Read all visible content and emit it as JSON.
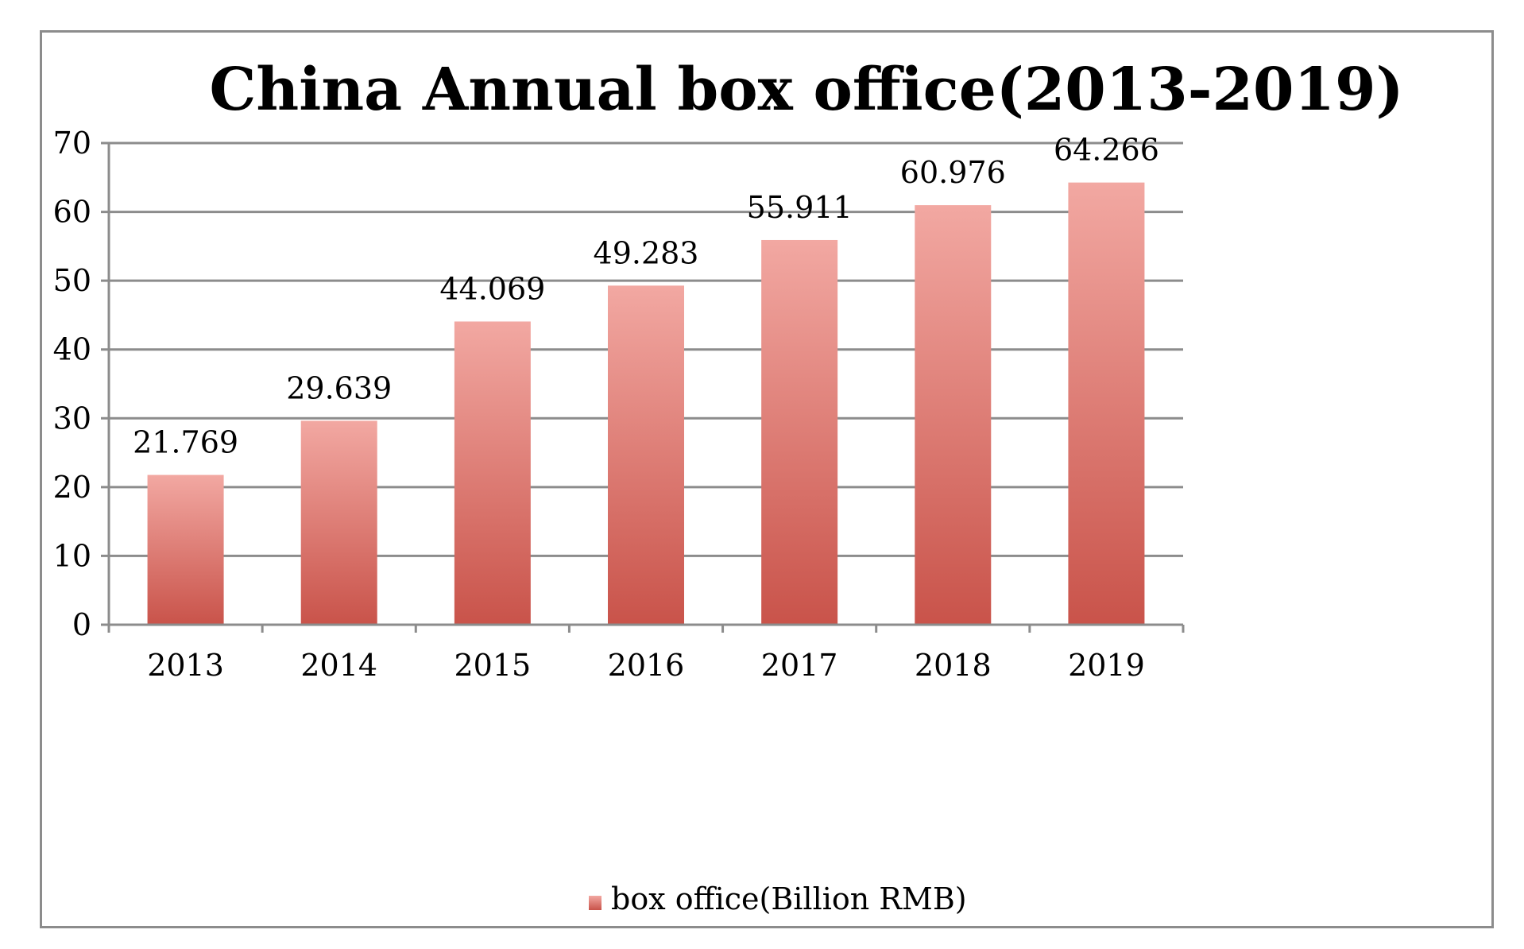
{
  "chart_data": {
    "type": "bar",
    "title": "China Annual box office(2013-2019)",
    "categories": [
      "2013",
      "2014",
      "2015",
      "2016",
      "2017",
      "2018",
      "2019"
    ],
    "series": [
      {
        "name": "box office(Billion RMB)",
        "values": [
          21.769,
          29.639,
          44.069,
          49.283,
          55.911,
          60.976,
          64.266
        ],
        "labels": [
          "21.769",
          "29.639",
          "44.069",
          "49.283",
          "55.911",
          "60.976",
          "64.266"
        ],
        "color_top": "#f2a8a2",
        "color_bottom": "#c9534a"
      }
    ],
    "ylim": [
      0,
      70
    ],
    "yticks": [
      0,
      10,
      20,
      30,
      40,
      50,
      60,
      70
    ],
    "grid": true,
    "legend_position": "bottom"
  },
  "colors": {
    "gridline": "#8c8c8c",
    "frame": "#8c8c8c"
  }
}
